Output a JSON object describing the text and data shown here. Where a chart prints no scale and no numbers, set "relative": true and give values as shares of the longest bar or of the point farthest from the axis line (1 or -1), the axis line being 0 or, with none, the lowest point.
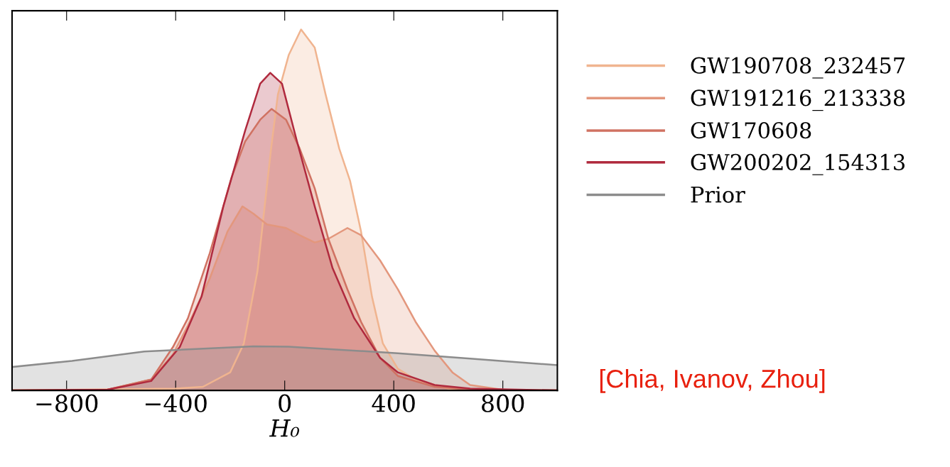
{
  "chart_data": {
    "type": "area",
    "relative": true,
    "xlabel": "H₀",
    "xlim": [
      -1000,
      1000
    ],
    "xticks": [
      {
        "value": -800,
        "label": "−800"
      },
      {
        "value": -400,
        "label": "−400"
      },
      0,
      400,
      800
    ],
    "grid": false,
    "legend": "right",
    "marker": "none",
    "line_style": "solid",
    "annotations": [
      "[Chia, Ivanov, Zhou]"
    ],
    "series": [
      {
        "name": "GW190708_232457",
        "color": "#f0b48f",
        "x": [
          -1000,
          -400,
          -300,
          -200,
          -150,
          -100,
          -50,
          -25,
          15,
          60,
          110,
          150,
          200,
          240,
          280,
          320,
          360,
          415,
          480,
          600,
          800,
          1000
        ],
        "values": [
          0,
          0.005,
          0.01,
          0.05,
          0.13,
          0.33,
          0.67,
          0.82,
          0.93,
          1.0,
          0.95,
          0.82,
          0.67,
          0.58,
          0.44,
          0.26,
          0.13,
          0.06,
          0.03,
          0.005,
          0,
          0
        ]
      },
      {
        "name": "GW191216_213338",
        "color": "#e3977d",
        "x": [
          -1000,
          -650,
          -490,
          -410,
          -355,
          -275,
          -210,
          -155,
          -115,
          -65,
          5,
          55,
          110,
          160,
          230,
          280,
          350,
          415,
          480,
          550,
          615,
          680,
          815,
          1000
        ],
        "values": [
          0,
          0.002,
          0.03,
          0.1,
          0.18,
          0.31,
          0.44,
          0.51,
          0.49,
          0.46,
          0.45,
          0.43,
          0.41,
          0.42,
          0.45,
          0.43,
          0.36,
          0.28,
          0.19,
          0.11,
          0.05,
          0.015,
          0,
          0
        ]
      },
      {
        "name": "GW170608",
        "color": "#d07262",
        "x": [
          -1000,
          -650,
          -490,
          -410,
          -355,
          -275,
          -195,
          -145,
          -90,
          -48,
          5,
          55,
          110,
          160,
          230,
          280,
          350,
          415,
          550,
          680,
          1000
        ],
        "values": [
          0,
          0.002,
          0.03,
          0.12,
          0.2,
          0.38,
          0.59,
          0.69,
          0.75,
          0.78,
          0.75,
          0.67,
          0.56,
          0.42,
          0.28,
          0.19,
          0.09,
          0.04,
          0.01,
          0.002,
          0
        ]
      },
      {
        "name": "GW200202_154313",
        "color": "#b02a3e",
        "x": [
          -1000,
          -650,
          -490,
          -385,
          -305,
          -225,
          -145,
          -90,
          -53,
          -10,
          45,
          110,
          175,
          255,
          350,
          415,
          550,
          680,
          1000
        ],
        "values": [
          0,
          0.002,
          0.026,
          0.12,
          0.26,
          0.51,
          0.72,
          0.85,
          0.88,
          0.85,
          0.69,
          0.51,
          0.34,
          0.2,
          0.09,
          0.05,
          0.015,
          0.005,
          0
        ]
      },
      {
        "name": "Prior",
        "color": "#8c8c8c",
        "x": [
          -1000,
          -780,
          -515,
          -115,
          15,
          415,
          680,
          1000
        ],
        "values": [
          0.065,
          0.082,
          0.108,
          0.122,
          0.121,
          0.103,
          0.088,
          0.07
        ]
      }
    ]
  }
}
